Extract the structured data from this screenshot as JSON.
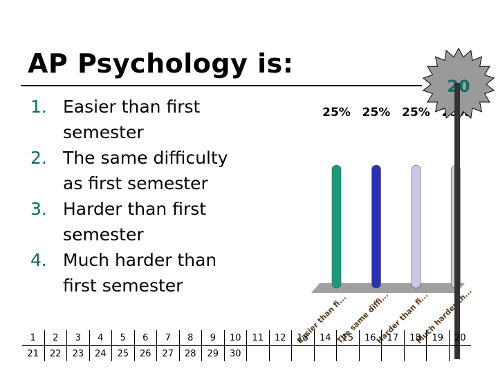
{
  "slide": {
    "title": "AP Psychology is:",
    "answers": [
      {
        "num": "1.",
        "text": "Easier than first semester",
        "line1": "Easier than first",
        "line2": "semester"
      },
      {
        "num": "2.",
        "text": "The same difficulty as first semester",
        "line1": "The same difficulty",
        "line2": "as first semester"
      },
      {
        "num": "3.",
        "text": "Harder than first semester",
        "line1": "Harder than first",
        "line2": "semester"
      },
      {
        "num": "4.",
        "text": "Much harder than first semester",
        "line1": "Much harder than",
        "line2": "first semester"
      }
    ]
  },
  "timer": {
    "value": "20",
    "fill": "#9a9a9a",
    "text_color": "#1a6b6b"
  },
  "chart_data": {
    "type": "bar",
    "categories": [
      "Easier than fi...",
      "The same diffi...",
      "Harder than fi...",
      "Much harder th..."
    ],
    "values": [
      25,
      25,
      25,
      25
    ],
    "value_labels": [
      "25%",
      "25%",
      "25%",
      "25%"
    ],
    "colors": [
      "#1a9b7a",
      "#2b2fb0",
      "#c8c8e6",
      "#d0d0d0"
    ],
    "ylim": [
      0,
      100
    ],
    "title": "",
    "xlabel": "",
    "ylabel": ""
  },
  "response_grid": {
    "rows": [
      [
        "1",
        "2",
        "3",
        "4",
        "5",
        "6",
        "7",
        "8",
        "9",
        "10",
        "11",
        "12",
        "13",
        "14",
        "15",
        "16",
        "17",
        "18",
        "19",
        "20"
      ],
      [
        "21",
        "22",
        "23",
        "24",
        "25",
        "26",
        "27",
        "28",
        "29",
        "30",
        "",
        "",
        "",
        "",
        "",
        "",
        "",
        "",
        "",
        ""
      ]
    ]
  }
}
